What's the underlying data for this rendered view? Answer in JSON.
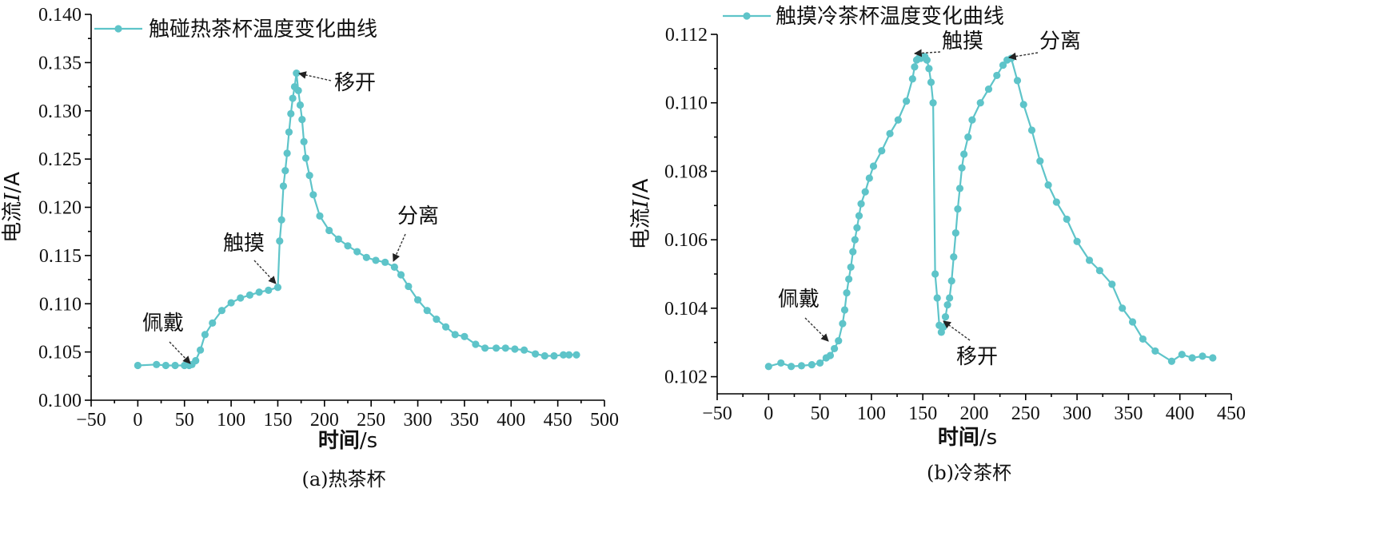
{
  "chart_data": [
    {
      "type": "line",
      "caption": "(a)热茶杯",
      "xlabel_bold": "时间",
      "xlabel_unit": "/s",
      "ylabel_pre": "电流",
      "ylabel_italic": "I",
      "ylabel_unit": "/A",
      "xlim": [
        -50,
        500
      ],
      "ylim": [
        0.1,
        0.14
      ],
      "xticks": [
        -50,
        0,
        50,
        100,
        150,
        200,
        250,
        300,
        350,
        400,
        450,
        500
      ],
      "xtick_labels": [
        "−50",
        "0",
        "50",
        "100",
        "150",
        "200",
        "250",
        "300",
        "350",
        "400",
        "450",
        "500"
      ],
      "yticks": [
        0.1,
        0.105,
        0.11,
        0.115,
        0.12,
        0.125,
        0.13,
        0.135,
        0.14
      ],
      "ytick_labels": [
        "0.100",
        "0.105",
        "0.110",
        "0.115",
        "0.120",
        "0.125",
        "0.130",
        "0.135",
        "0.140"
      ],
      "legend": "触碰热茶杯温度变化曲线",
      "legend_position": "top-left",
      "color": "#5ec4c9",
      "x": [
        0,
        20,
        30,
        40,
        50,
        55,
        58,
        62,
        67,
        72,
        80,
        90,
        100,
        110,
        120,
        130,
        140,
        150,
        152,
        154,
        156,
        158,
        160,
        162,
        164,
        166,
        168,
        170,
        172,
        174,
        176,
        178,
        180,
        184,
        188,
        195,
        205,
        215,
        225,
        235,
        245,
        255,
        265,
        275,
        282,
        290,
        300,
        310,
        320,
        330,
        340,
        350,
        362,
        372,
        384,
        394,
        404,
        414,
        426,
        436,
        446,
        456,
        462,
        470
      ],
      "y": [
        0.1036,
        0.1037,
        0.1036,
        0.1036,
        0.1036,
        0.1036,
        0.1037,
        0.1041,
        0.1052,
        0.1068,
        0.108,
        0.1093,
        0.1101,
        0.1106,
        0.1109,
        0.1112,
        0.1114,
        0.1117,
        0.1165,
        0.1187,
        0.1222,
        0.1238,
        0.1256,
        0.1278,
        0.1297,
        0.1313,
        0.1325,
        0.1339,
        0.1321,
        0.1306,
        0.1291,
        0.1268,
        0.1251,
        0.1233,
        0.1213,
        0.1191,
        0.1176,
        0.1167,
        0.116,
        0.1154,
        0.1148,
        0.1145,
        0.1143,
        0.1138,
        0.113,
        0.1118,
        0.1104,
        0.1093,
        0.1084,
        0.1076,
        0.1068,
        0.1066,
        0.1058,
        0.1054,
        0.1054,
        0.1054,
        0.1053,
        0.1052,
        0.1048,
        0.1046,
        0.1046,
        0.1047,
        0.1047,
        0.1047
      ],
      "annotations": [
        {
          "text": "佩戴",
          "x": 55,
          "y": 0.1036
        },
        {
          "text": "触摸",
          "x": 150,
          "y": 0.1117
        },
        {
          "text": "移开",
          "x": 170,
          "y": 0.1339
        },
        {
          "text": "分离",
          "x": 275,
          "y": 0.114
        }
      ]
    },
    {
      "type": "line",
      "caption": "(b)冷茶杯",
      "xlabel_bold": "时间",
      "xlabel_unit": "/s",
      "ylabel_pre": "电流",
      "ylabel_italic": "I",
      "ylabel_unit": "/A",
      "xlim": [
        -50,
        450
      ],
      "ylim": [
        0.1015,
        0.112
      ],
      "xticks": [
        -50,
        0,
        50,
        100,
        150,
        200,
        250,
        300,
        350,
        400,
        450
      ],
      "xtick_labels": [
        "−50",
        "0",
        "50",
        "100",
        "150",
        "200",
        "250",
        "300",
        "350",
        "400",
        "450"
      ],
      "yticks": [
        0.102,
        0.104,
        0.106,
        0.108,
        0.11,
        0.112
      ],
      "ytick_labels": [
        "0.102",
        "0.104",
        "0.106",
        "0.108",
        "0.110",
        "0.112"
      ],
      "legend": "触摸冷茶杯温度变化曲线",
      "legend_position": "top-left",
      "color": "#5ec4c9",
      "x": [
        0,
        12,
        22,
        32,
        42,
        50,
        56,
        60,
        64,
        68,
        72,
        74,
        76,
        78,
        80,
        82,
        84,
        86,
        88,
        90,
        94,
        98,
        102,
        110,
        118,
        126,
        134,
        140,
        142,
        144,
        146,
        148,
        150,
        152,
        154,
        156,
        158,
        160,
        162,
        164,
        166,
        168,
        170,
        172,
        174,
        176,
        178,
        180,
        182,
        184,
        186,
        188,
        190,
        194,
        198,
        206,
        214,
        222,
        228,
        232,
        236,
        242,
        248,
        256,
        264,
        272,
        280,
        290,
        300,
        312,
        322,
        334,
        344,
        354,
        364,
        376,
        392,
        402,
        412,
        422,
        432
      ],
      "y": [
        0.1023,
        0.1024,
        0.1023,
        0.10232,
        0.10235,
        0.1024,
        0.10255,
        0.10262,
        0.10282,
        0.10305,
        0.10355,
        0.10395,
        0.10445,
        0.10485,
        0.1052,
        0.10565,
        0.106,
        0.10635,
        0.1067,
        0.10705,
        0.1074,
        0.1078,
        0.10815,
        0.1086,
        0.1091,
        0.1095,
        0.11005,
        0.1107,
        0.11105,
        0.11125,
        0.1113,
        0.1113,
        0.11135,
        0.11135,
        0.11125,
        0.111,
        0.1106,
        0.11,
        0.105,
        0.1043,
        0.1035,
        0.1033,
        0.10345,
        0.10375,
        0.1041,
        0.1043,
        0.1048,
        0.1055,
        0.1062,
        0.1069,
        0.1075,
        0.1081,
        0.1085,
        0.109,
        0.1095,
        0.11,
        0.1104,
        0.1108,
        0.1111,
        0.11125,
        0.1113,
        0.11065,
        0.10995,
        0.1092,
        0.1083,
        0.1076,
        0.1071,
        0.1066,
        0.10595,
        0.1054,
        0.1051,
        0.1047,
        0.104,
        0.1036,
        0.1031,
        0.10275,
        0.10245,
        0.10265,
        0.10255,
        0.1026,
        0.10255
      ],
      "annotations": [
        {
          "text": "佩戴",
          "x": 56,
          "y": 0.10255
        },
        {
          "text": "触摸",
          "x": 142,
          "y": 0.11135
        },
        {
          "text": "移开",
          "x": 168,
          "y": 0.1033
        },
        {
          "text": "分离",
          "x": 232,
          "y": 0.1113
        }
      ]
    }
  ]
}
